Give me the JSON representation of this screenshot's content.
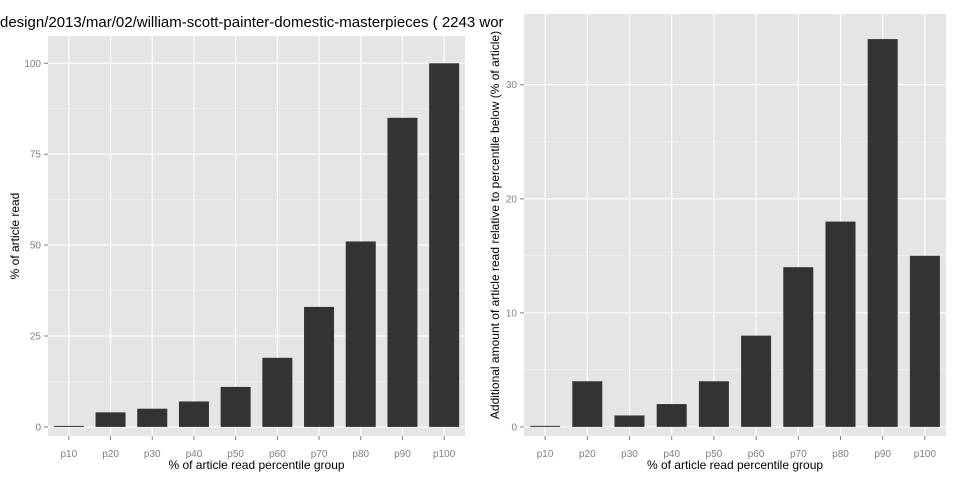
{
  "title": "design/2013/mar/02/william-scott-painter-domestic-masterpieces ( 2243 wor",
  "colors": {
    "panel_bg": "#e5e5e5",
    "grid_major": "#ffffff",
    "grid_minor": "#f2f2f2",
    "bar": "#333333",
    "tick_text": "#7f7f7f"
  },
  "chart_data": [
    {
      "type": "bar",
      "categories": [
        "p10",
        "p20",
        "p30",
        "p40",
        "p50",
        "p60",
        "p70",
        "p80",
        "p90",
        "p100"
      ],
      "values": [
        0,
        4,
        5,
        7,
        11,
        19,
        33,
        51,
        85,
        100
      ],
      "xlabel": "% of article read percentile group",
      "ylabel": "% of article read",
      "ylim": [
        -2.5,
        107.5
      ],
      "yticks": [
        0,
        25,
        50,
        75,
        100
      ],
      "grid": true
    },
    {
      "type": "bar",
      "categories": [
        "p10",
        "p20",
        "p30",
        "p40",
        "p50",
        "p60",
        "p70",
        "p80",
        "p90",
        "p100"
      ],
      "values": [
        0,
        4,
        1,
        2,
        4,
        8,
        14,
        18,
        34,
        15
      ],
      "xlabel": "% of article read percentile group",
      "ylabel": "Additional amount of article read relative to percentile below (% of article)",
      "ylim": [
        -0.8,
        36.2
      ],
      "yticks": [
        0,
        10,
        20,
        30
      ],
      "grid": true
    }
  ]
}
